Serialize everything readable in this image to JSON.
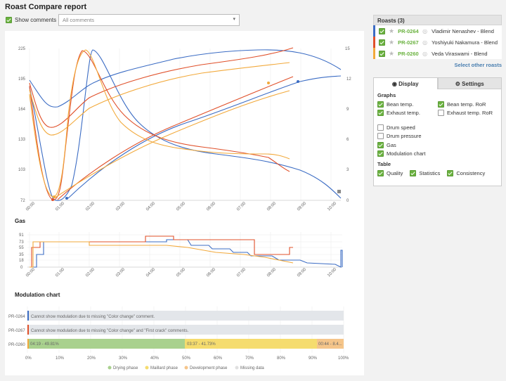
{
  "page": {
    "title": "Roast Compare report"
  },
  "comments": {
    "show_label": "Show comments",
    "select_value": "All comments"
  },
  "roasts": {
    "header": "Roasts (3)",
    "items": [
      {
        "code": "PR-0264",
        "name": "Vladimir Nenashev - Blend",
        "color": "#3b6cc4"
      },
      {
        "code": "PR-0267",
        "name": "Yoshiyuki Nakamura - Blend",
        "color": "#e0502a"
      },
      {
        "code": "PR-0260",
        "name": "Veda Viraswami - Blend",
        "color": "#f2a93b"
      }
    ],
    "select_other": "Select other roasts"
  },
  "tabs": {
    "display": "Display",
    "settings": "Settings"
  },
  "graphs": {
    "heading": "Graphs",
    "bean_temp": "Bean temp.",
    "bean_ror": "Bean temp. RoR",
    "exhaust_temp": "Exhaust temp.",
    "exhaust_ror": "Exhaust temp. RoR",
    "drum_speed": "Drum speed",
    "drum_pressure": "Drum pressure",
    "gas": "Gas",
    "modulation": "Modulation chart"
  },
  "table": {
    "heading": "Table",
    "quality": "Quality",
    "statistics": "Statistics",
    "consistency": "Consistency"
  },
  "main_chart": {
    "left_ticks": [
      "72",
      "103",
      "133",
      "164",
      "195",
      "225"
    ],
    "right_ticks": [
      "0",
      "3",
      "6",
      "9",
      "12",
      "15"
    ],
    "x_ticks": [
      "00:00",
      "01:00",
      "02:00",
      "03:00",
      "04:00",
      "05:00",
      "06:00",
      "07:00",
      "08:00",
      "09:00",
      "10:00"
    ]
  },
  "gas_chart": {
    "title": "Gas",
    "y_ticks": [
      "0",
      "18",
      "35",
      "55",
      "73",
      "91"
    ]
  },
  "modulation": {
    "title": "Modulation chart",
    "rows": [
      {
        "label": "PR-0264",
        "text": "Cannot show modulation due to missing \"Color change\" comment."
      },
      {
        "label": "PR-0267",
        "text": "Cannot show modulation due to missing \"Color change\" and \"First crack\" comments."
      },
      {
        "label": "PR-0260",
        "phases": [
          "04:19 - 49.81%",
          "03:37 - 41.73%",
          "00:44 - 8.4..."
        ]
      }
    ],
    "x_ticks": [
      "0%",
      "10%",
      "20%",
      "30%",
      "40%",
      "50%",
      "60%",
      "70%",
      "80%",
      "90%",
      "100%"
    ],
    "legend": [
      "Drying phase",
      "Maillard phase",
      "Development phase",
      "Missing data"
    ],
    "legend_colors": [
      "#a9d18e",
      "#f5dc6e",
      "#f5c58a",
      "#e0e0e0"
    ]
  },
  "chart_data": {
    "type": "line",
    "x_unit": "mm:ss",
    "series": [
      {
        "name": "PR-0264",
        "color": "#3b6cc4",
        "points": [
          [
            0,
            176
          ],
          [
            1,
            90
          ],
          [
            2,
            140
          ],
          [
            3,
            165
          ],
          [
            5,
            188
          ],
          [
            7,
            210
          ],
          [
            8,
            218
          ],
          [
            10,
            214
          ]
        ]
      },
      {
        "name": "PR-0267",
        "color": "#e0502a",
        "points": [
          [
            0,
            170
          ],
          [
            0.9,
            72
          ],
          [
            2,
            110
          ],
          [
            4,
            140
          ],
          [
            6,
            175
          ],
          [
            8,
            200
          ],
          [
            9,
            215
          ]
        ]
      },
      {
        "name": "PR-0260",
        "color": "#f2a93b",
        "points": [
          [
            0,
            168
          ],
          [
            1,
            80
          ],
          [
            2,
            110
          ],
          [
            4,
            135
          ],
          [
            6,
            160
          ],
          [
            8,
            185
          ],
          [
            9,
            195
          ]
        ]
      }
    ]
  }
}
